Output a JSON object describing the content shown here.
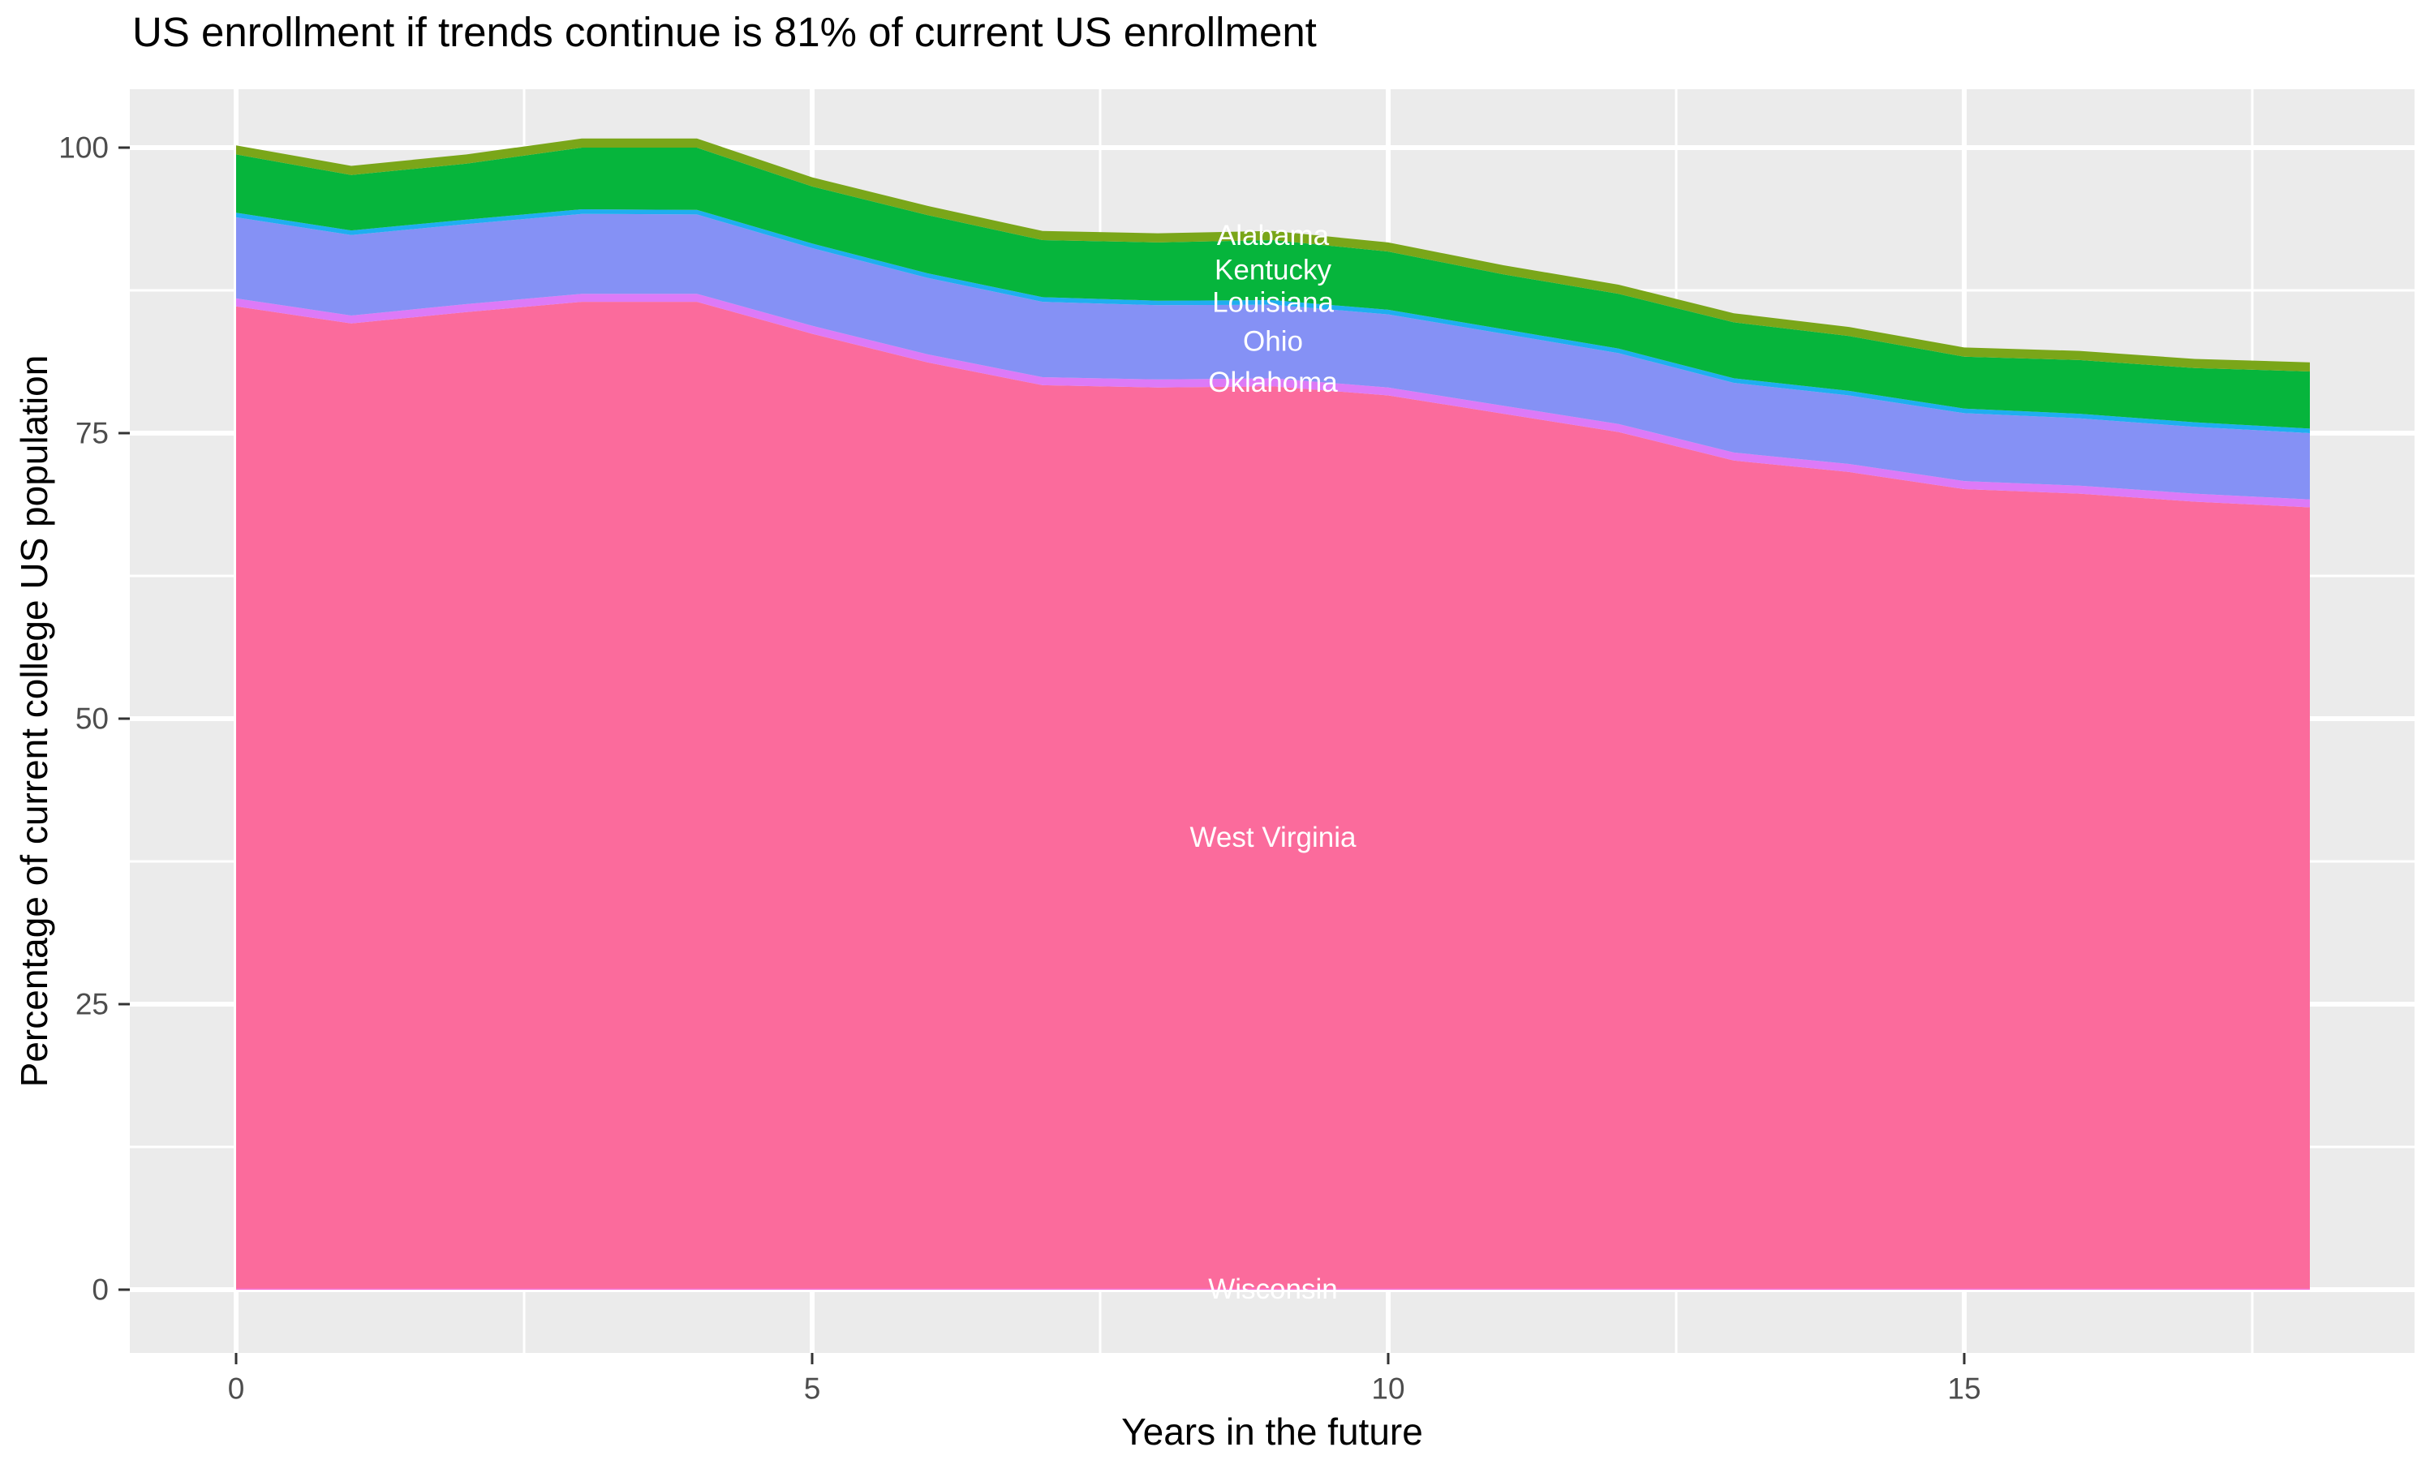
{
  "title": "US enrollment if trends continue is 81% of current US enrollment",
  "axes": {
    "x": {
      "label": "Years in the future",
      "tick_values": [
        0,
        5,
        10,
        15
      ],
      "tick_labels": [
        "0",
        "5",
        "10",
        "15"
      ],
      "minor_ticks": [
        2.5,
        7.5,
        12.5,
        17.5
      ],
      "range": [
        -0.9,
        18.9
      ]
    },
    "y": {
      "label": "Percentage of current college US population",
      "tick_values": [
        0,
        25,
        50,
        75,
        100
      ],
      "tick_labels": [
        "0",
        "25",
        "50",
        "75",
        "100"
      ],
      "minor_ticks": [
        12.5,
        37.5,
        62.5,
        87.5
      ],
      "range": [
        -5.5,
        105.1
      ]
    }
  },
  "colors": {
    "panel_background": "#EBEBEB",
    "gridline": "#FFFFFF",
    "tick_mark": "#333333",
    "tick_text": "#4D4D4D",
    "axis_title_text": "#000000",
    "title_text": "#000000",
    "area_label_text": "#FFFFFF"
  },
  "chart_data": {
    "type": "area",
    "stacked": true,
    "title": "US enrollment if trends continue is 81% of current US enrollment",
    "xlabel": "Years in the future",
    "ylabel": "Percentage of current college US population",
    "xlim": [
      -0.9,
      18.9
    ],
    "ylim": [
      -5.5,
      105.1
    ],
    "grid": true,
    "legend": "none (direct white labels at band centers, year 9)",
    "label_year": 9,
    "x": [
      0,
      1,
      2,
      3,
      4,
      5,
      6,
      7,
      8,
      9,
      10,
      11,
      12,
      13,
      14,
      15,
      16,
      17,
      18
    ],
    "series": [
      {
        "name": "Wisconsin",
        "color": "#F661D2",
        "values": [
          0.1,
          0.1,
          0.1,
          0.1,
          0.1,
          0.1,
          0.1,
          0.1,
          0.1,
          0.1,
          0.1,
          0.1,
          0.1,
          0.1,
          0.1,
          0.1,
          0.1,
          0.1,
          0.1
        ]
      },
      {
        "name": "West Virginia",
        "color": "#FB6B9C",
        "values": [
          86.0,
          84.5,
          85.5,
          86.4,
          86.4,
          83.6,
          81.1,
          79.1,
          78.9,
          79.0,
          78.2,
          76.6,
          75.0,
          72.5,
          71.5,
          70.0,
          69.6,
          68.9,
          68.4
        ]
      },
      {
        "name": "Oklahoma",
        "color": "#DD7AF7",
        "values": [
          0.7,
          0.7,
          0.7,
          0.7,
          0.7,
          0.7,
          0.7,
          0.7,
          0.7,
          0.7,
          0.7,
          0.7,
          0.7,
          0.7,
          0.7,
          0.7,
          0.7,
          0.7,
          0.7
        ]
      },
      {
        "name": "Ohio",
        "color": "#8591F5",
        "values": [
          7.1,
          7.05,
          7.0,
          7.0,
          6.95,
          6.8,
          6.7,
          6.6,
          6.5,
          6.45,
          6.4,
          6.3,
          6.2,
          6.1,
          6.0,
          5.95,
          5.9,
          5.85,
          5.8
        ]
      },
      {
        "name": "Louisiana",
        "color": "#1FAEF0",
        "values": [
          0.4,
          0.4,
          0.4,
          0.4,
          0.4,
          0.4,
          0.4,
          0.4,
          0.4,
          0.4,
          0.4,
          0.4,
          0.4,
          0.4,
          0.4,
          0.4,
          0.4,
          0.4,
          0.4
        ]
      },
      {
        "name": "Kentucky",
        "color": "#06B53C",
        "values": [
          5.1,
          4.85,
          4.9,
          5.4,
          5.45,
          5.0,
          5.1,
          5.0,
          5.1,
          5.25,
          5.1,
          4.8,
          4.8,
          4.9,
          4.8,
          4.55,
          4.7,
          4.75,
          5.0
        ]
      },
      {
        "name": "Alabama",
        "color": "#7AA619",
        "values": [
          0.8,
          0.8,
          0.8,
          0.8,
          0.8,
          0.8,
          0.8,
          0.8,
          0.8,
          0.8,
          0.8,
          0.8,
          0.8,
          0.8,
          0.8,
          0.8,
          0.8,
          0.8,
          0.8
        ]
      }
    ],
    "stacked_totals_pct": [
      100.2,
      98.4,
      99.4,
      100.8,
      100.8,
      97.4,
      94.9,
      92.7,
      92.5,
      92.7,
      91.7,
      89.7,
      88.0,
      85.5,
      84.3,
      82.5,
      82.2,
      81.5,
      81.2
    ]
  }
}
